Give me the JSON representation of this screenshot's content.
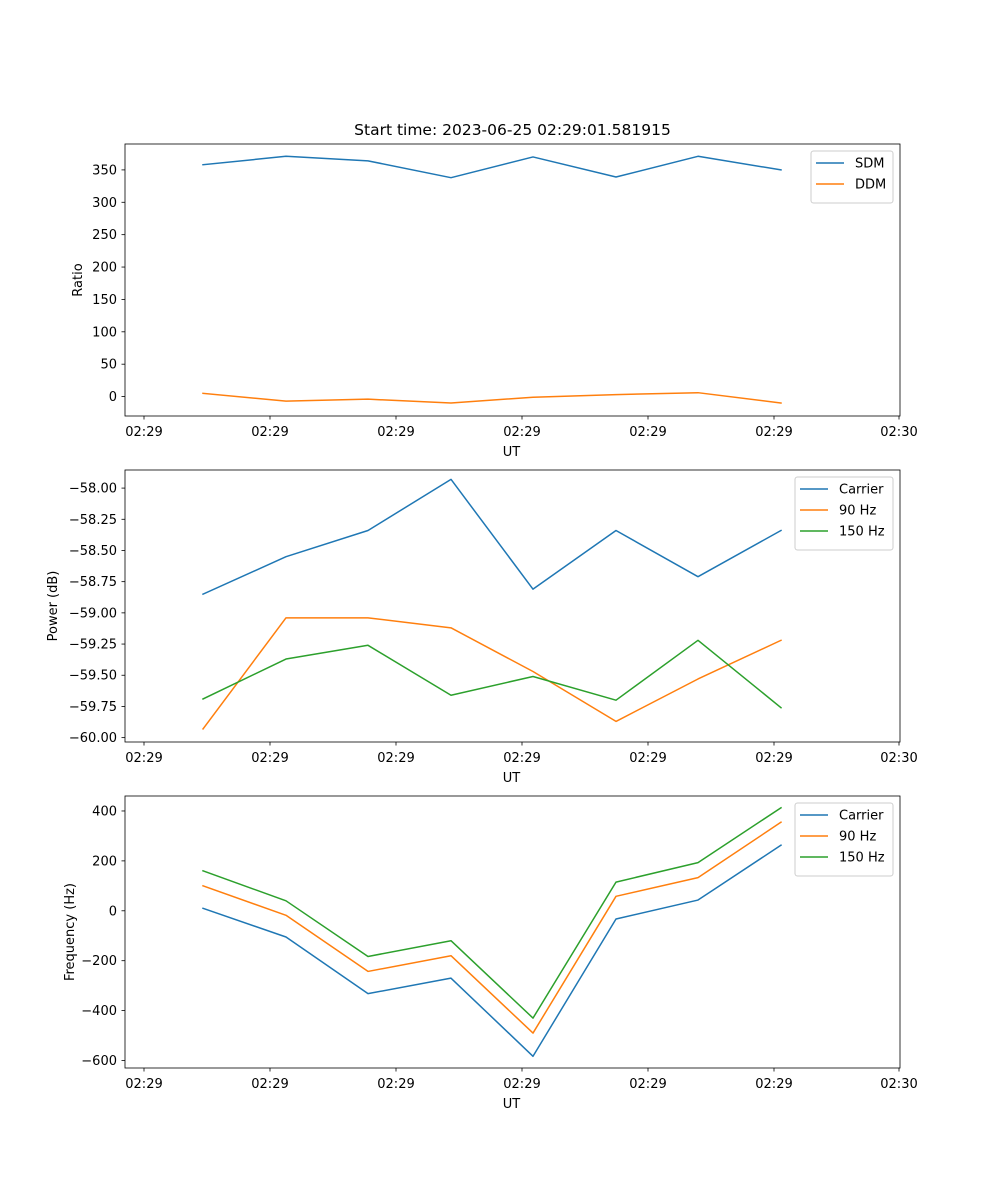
{
  "chart_data": [
    {
      "type": "line",
      "title": "Start time: 2023-06-25 02:29:01.581915",
      "xlabel": "UT",
      "ylabel": "Ratio",
      "x": [
        0,
        1,
        2,
        3,
        4,
        5,
        6,
        7
      ],
      "x_tick_labels": [
        "02:29",
        "02:29",
        "02:29",
        "02:29",
        "02:29",
        "02:29",
        "02:30"
      ],
      "ylim": [
        -30,
        390
      ],
      "y_ticks": [
        0,
        50,
        100,
        150,
        200,
        250,
        300,
        350
      ],
      "y_tick_labels": [
        "0",
        "50",
        "100",
        "150",
        "200",
        "250",
        "300",
        "350"
      ],
      "legend_position": "top-right",
      "grid": false,
      "series": [
        {
          "name": "SDM",
          "color": "#1f77b4",
          "values": [
            358,
            371,
            364,
            338,
            370,
            339,
            371,
            350
          ]
        },
        {
          "name": "DDM",
          "color": "#ff7f0e",
          "values": [
            5,
            -7,
            -4,
            -10,
            -1,
            3,
            6,
            -10
          ]
        }
      ]
    },
    {
      "type": "line",
      "title": "",
      "xlabel": "UT",
      "ylabel": "Power (dB)",
      "x": [
        0,
        1,
        2,
        3,
        4,
        5,
        6,
        7
      ],
      "x_tick_labels": [
        "02:29",
        "02:29",
        "02:29",
        "02:29",
        "02:29",
        "02:29",
        "02:30"
      ],
      "ylim": [
        -60.035,
        -57.855
      ],
      "y_ticks": [
        -60.0,
        -59.75,
        -59.5,
        -59.25,
        -59.0,
        -58.75,
        -58.5,
        -58.25,
        -58.0
      ],
      "y_tick_labels": [
        "−60.00",
        "−59.75",
        "−59.50",
        "−59.25",
        "−59.00",
        "−58.75",
        "−58.50",
        "−58.25",
        "−58.00"
      ],
      "legend_position": "top-right",
      "grid": false,
      "series": [
        {
          "name": "Carrier",
          "color": "#1f77b4",
          "values": [
            -58.85,
            -58.55,
            -58.34,
            -57.93,
            -58.81,
            -58.34,
            -58.71,
            -58.34
          ]
        },
        {
          "name": "90 Hz",
          "color": "#ff7f0e",
          "values": [
            -59.93,
            -59.04,
            -59.04,
            -59.12,
            -59.47,
            -59.87,
            -59.53,
            -59.22
          ]
        },
        {
          "name": "150 Hz",
          "color": "#2ca02c",
          "values": [
            -59.69,
            -59.37,
            -59.26,
            -59.66,
            -59.51,
            -59.7,
            -59.22,
            -59.76
          ]
        }
      ]
    },
    {
      "type": "line",
      "title": "",
      "xlabel": "UT",
      "ylabel": "Frequency (Hz)",
      "x": [
        0,
        1,
        2,
        3,
        4,
        5,
        6,
        7
      ],
      "x_tick_labels": [
        "02:29",
        "02:29",
        "02:29",
        "02:29",
        "02:29",
        "02:29",
        "02:30"
      ],
      "ylim": [
        -630,
        460
      ],
      "y_ticks": [
        -600,
        -400,
        -200,
        0,
        200,
        400
      ],
      "y_tick_labels": [
        "−600",
        "−400",
        "−200",
        "0",
        "200",
        "400"
      ],
      "legend_position": "top-right",
      "grid": false,
      "series": [
        {
          "name": "Carrier",
          "color": "#1f77b4",
          "values": [
            10,
            -105,
            -332,
            -270,
            -583,
            -33,
            43,
            263
          ]
        },
        {
          "name": "90 Hz",
          "color": "#ff7f0e",
          "values": [
            100,
            -18,
            -243,
            -180,
            -490,
            58,
            133,
            355
          ]
        },
        {
          "name": "150 Hz",
          "color": "#2ca02c",
          "values": [
            160,
            40,
            -183,
            -120,
            -430,
            115,
            193,
            413
          ]
        }
      ]
    }
  ]
}
